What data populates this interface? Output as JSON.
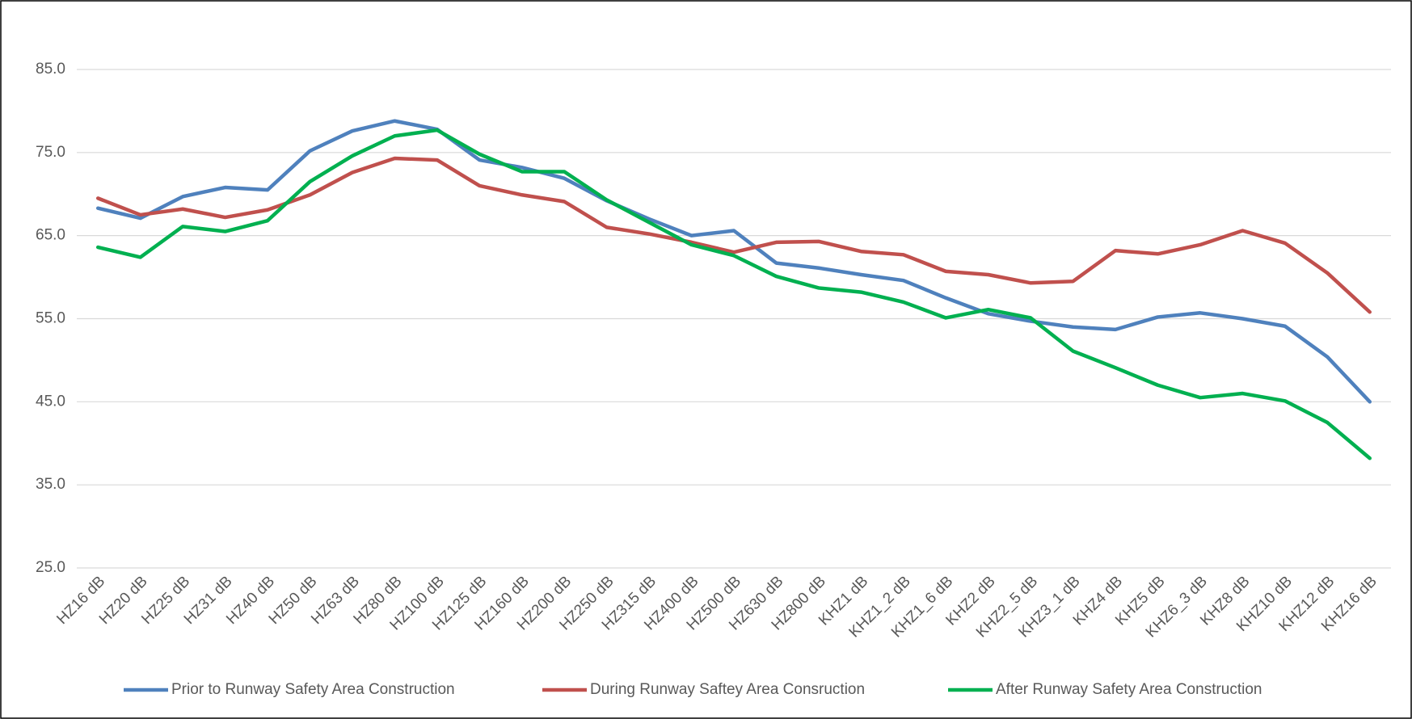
{
  "chart_data": {
    "type": "line",
    "categories": [
      "HZ16 dB",
      "HZ20 dB",
      "HZ25 dB",
      "HZ31 dB",
      "HZ40 dB",
      "HZ50 dB",
      "HZ63 dB",
      "HZ80 dB",
      "HZ100 dB",
      "HZ125 dB",
      "HZ160 dB",
      "HZ200 dB",
      "HZ250 dB",
      "HZ315 dB",
      "HZ400 dB",
      "HZ500 dB",
      "HZ630 dB",
      "HZ800 dB",
      "KHZ1 dB",
      "KHZ1_2 dB",
      "KHZ1_6 dB",
      "KHZ2 dB",
      "KHZ2_5 dB",
      "KHZ3_1 dB",
      "KHZ4 dB",
      "KHZ5 dB",
      "KHZ6_3 dB",
      "KHZ8 dB",
      "KHZ10 dB",
      "KHZ12 dB",
      "KHZ16 dB"
    ],
    "series": [
      {
        "name": "Prior to Runway Safety Area Construction",
        "color": "#4f81bd",
        "values": [
          68.3,
          67.1,
          69.7,
          70.8,
          70.5,
          75.2,
          77.6,
          78.8,
          77.8,
          74.1,
          73.2,
          71.9,
          69.2,
          67.0,
          65.0,
          65.6,
          61.7,
          61.1,
          60.3,
          59.6,
          57.5,
          55.6,
          54.7,
          54.0,
          53.7,
          55.2,
          55.7,
          55.0,
          54.1,
          50.4,
          45.0
        ]
      },
      {
        "name": "During Runway Saftey Area Consruction",
        "color": "#c0504d",
        "values": [
          69.5,
          67.5,
          68.2,
          67.2,
          68.1,
          69.9,
          72.6,
          74.3,
          74.1,
          71.0,
          69.9,
          69.1,
          66.0,
          65.2,
          64.2,
          63.0,
          64.2,
          64.3,
          63.1,
          62.7,
          60.7,
          60.3,
          59.3,
          59.5,
          63.2,
          62.8,
          63.9,
          65.6,
          64.1,
          60.5,
          55.8
        ]
      },
      {
        "name": "After Runway Safety Area Construction",
        "color": "#00b050",
        "values": [
          63.6,
          62.4,
          66.1,
          65.5,
          66.8,
          71.5,
          74.6,
          77.0,
          77.7,
          74.8,
          72.7,
          72.7,
          69.3,
          66.6,
          63.9,
          62.6,
          60.1,
          58.7,
          58.2,
          57.0,
          55.1,
          56.1,
          55.1,
          51.1,
          49.1,
          47.0,
          45.5,
          46.0,
          45.1,
          42.5,
          38.2
        ]
      }
    ],
    "ylim": [
      25,
      92
    ],
    "yticks": [
      {
        "value": 25,
        "label": "25.0"
      },
      {
        "value": 35,
        "label": "35.0"
      },
      {
        "value": 45,
        "label": "45.0"
      },
      {
        "value": 55,
        "label": "55.0"
      },
      {
        "value": 65,
        "label": "65.0"
      },
      {
        "value": 75,
        "label": "75.0"
      },
      {
        "value": 85,
        "label": "85.0"
      }
    ],
    "grid": true,
    "legend": "bottom"
  }
}
